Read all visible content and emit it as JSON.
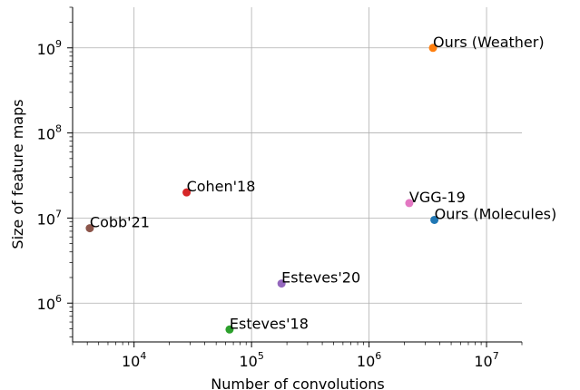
{
  "chart_data": {
    "type": "scatter",
    "xlabel": "Number of convolutions",
    "ylabel": "Size of feature maps",
    "xscale": "log",
    "yscale": "log",
    "xlim": [
      3000,
      20000000
    ],
    "ylim": [
      350000,
      3000000000
    ],
    "grid": true,
    "xticks": [
      {
        "value": 10000,
        "base": "10",
        "exp": "4"
      },
      {
        "value": 100000,
        "base": "10",
        "exp": "5"
      },
      {
        "value": 1000000,
        "base": "10",
        "exp": "6"
      },
      {
        "value": 10000000,
        "base": "10",
        "exp": "7"
      }
    ],
    "yticks": [
      {
        "value": 1000000,
        "base": "10",
        "exp": "6"
      },
      {
        "value": 10000000,
        "base": "10",
        "exp": "7"
      },
      {
        "value": 100000000,
        "base": "10",
        "exp": "8"
      },
      {
        "value": 1000000000,
        "base": "10",
        "exp": "9"
      }
    ],
    "points": [
      {
        "label": "Ours (Weather)",
        "x": 3500000,
        "y": 1000000000,
        "color": "#ff7f0e"
      },
      {
        "label": "Cohen'18",
        "x": 28000,
        "y": 20000000,
        "color": "#d62728"
      },
      {
        "label": "VGG-19",
        "x": 2200000,
        "y": 15000000,
        "color": "#e377c2"
      },
      {
        "label": "Ours (Molecules)",
        "x": 3600000,
        "y": 9500000,
        "color": "#1f77b4"
      },
      {
        "label": "Cobb'21",
        "x": 4200,
        "y": 7600000,
        "color": "#8c564b"
      },
      {
        "label": "Esteves'20",
        "x": 180000,
        "y": 1700000,
        "color": "#9467bd"
      },
      {
        "label": "Esteves'18",
        "x": 65000,
        "y": 490000,
        "color": "#2ca02c"
      }
    ]
  }
}
